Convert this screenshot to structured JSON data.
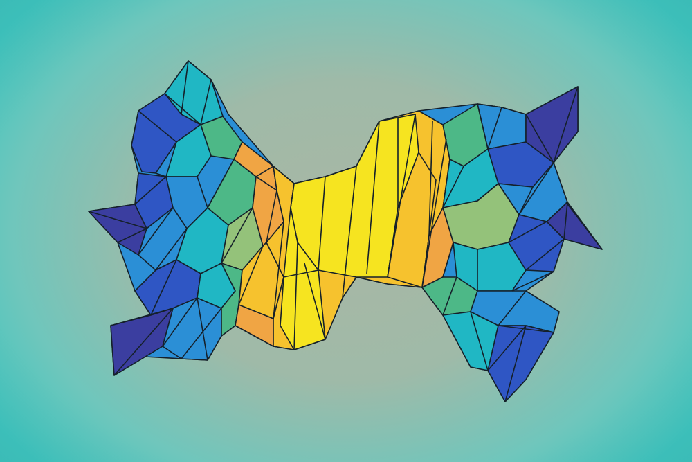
{
  "image": {
    "kind": "abstract-low-poly-illustration",
    "background_colors": {
      "center": "#a9b7a4",
      "edge": "#3ec7c0"
    },
    "palette": {
      "deep_indigo": "#3b3ea0",
      "royal_blue": "#2f56c4",
      "sky_blue": "#2b8fd6",
      "teal": "#20b7c4",
      "green": "#4db887",
      "sage": "#94c27a",
      "orange": "#f0a544",
      "gold": "#f6c22e",
      "yellow": "#f6e420",
      "outline": "#15202a"
    }
  }
}
